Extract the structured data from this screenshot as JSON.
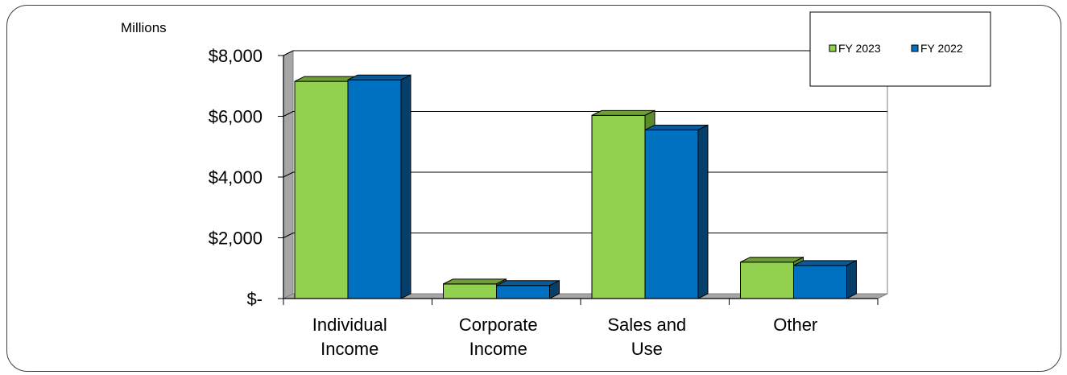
{
  "chart_data": {
    "type": "bar",
    "title": "",
    "units_label": "Millions",
    "xlabel": "",
    "ylabel": "",
    "categories": [
      [
        "Individual",
        "Income"
      ],
      [
        "Corporate",
        "Income"
      ],
      [
        "Sales and",
        "Use"
      ],
      [
        "Other"
      ]
    ],
    "series": [
      {
        "name": "FY 2023",
        "color": "#92d050",
        "top_color": "#6f9e37",
        "side_color": "#5d8a2d",
        "values": [
          7150,
          480,
          6030,
          1200
        ]
      },
      {
        "name": "FY 2022",
        "color": "#0070c0",
        "top_color": "#0b5a96",
        "side_color": "#073f6b",
        "values": [
          7200,
          430,
          5550,
          1090
        ]
      }
    ],
    "y_ticks": [
      {
        "value": 0,
        "label": "$-"
      },
      {
        "value": 2000,
        "label": "$2,000"
      },
      {
        "value": 4000,
        "label": "$4,000"
      },
      {
        "value": 6000,
        "label": "$6,000"
      },
      {
        "value": 8000,
        "label": "$8,000"
      }
    ],
    "ylim": [
      0,
      8000
    ],
    "grid": true,
    "legend_position": "top-right"
  }
}
